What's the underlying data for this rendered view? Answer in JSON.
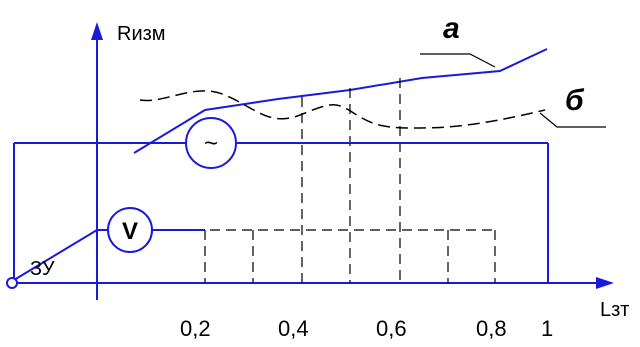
{
  "axes": {
    "y_label": "Rизм",
    "x_label": "Lзт"
  },
  "x_ticks": [
    "0,2",
    "0,4",
    "0,6",
    "0,8",
    "1"
  ],
  "curve_labels": {
    "a": "а",
    "b": "б"
  },
  "meter": {
    "label": "V"
  },
  "generator": {
    "symbol": "~"
  },
  "device": {
    "label": "ЗУ"
  },
  "colors": {
    "circuit": "#1a1adb",
    "dashed": "#000000",
    "text": "#000000"
  }
}
